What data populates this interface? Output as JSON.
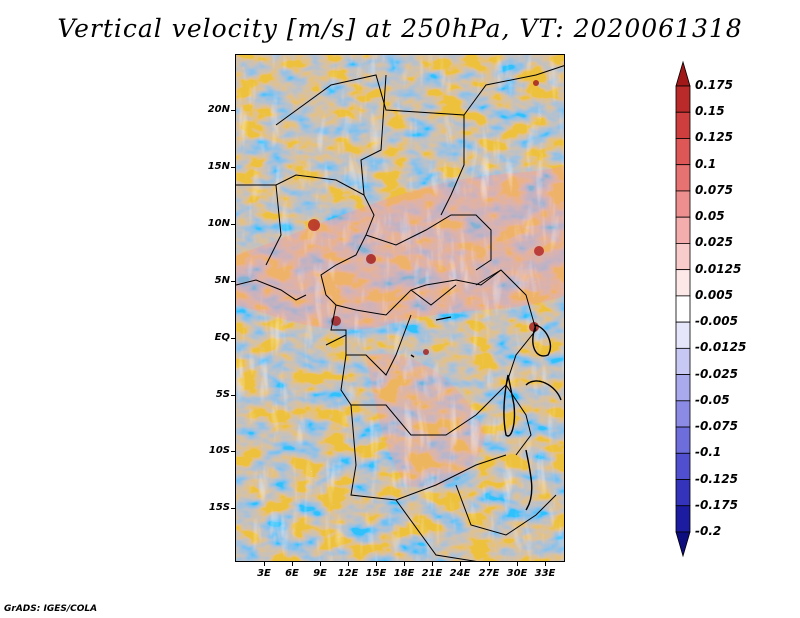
{
  "title": "Vertical velocity [m/s] at 250hPa, VT: 2020061318",
  "credit": "GrADS: IGES/COLA",
  "map": {
    "lat_labels": [
      "20N",
      "15N",
      "10N",
      "5N",
      "EQ",
      "5S",
      "10S",
      "15S"
    ],
    "lon_labels": [
      "3E",
      "6E",
      "9E",
      "12E",
      "15E",
      "18E",
      "21E",
      "24E",
      "27E",
      "30E",
      "33E"
    ]
  },
  "colorbar": {
    "labels": [
      "0.175",
      "0.15",
      "0.125",
      "0.1",
      "0.075",
      "0.05",
      "0.025",
      "0.0125",
      "0.005",
      "-0.005",
      "-0.0125",
      "-0.025",
      "-0.05",
      "-0.075",
      "-0.1",
      "-0.125",
      "-0.175",
      "-0.2"
    ],
    "colors": [
      "#a01818",
      "#bb2a2a",
      "#cf3e3e",
      "#dd5757",
      "#e67272",
      "#ee8f8f",
      "#f4adad",
      "#f9cccc",
      "#fde8e8",
      "#ffffff",
      "#e6e6fb",
      "#c8c8f5",
      "#a9a9ee",
      "#8b8be6",
      "#6d6ddc",
      "#4f4fcf",
      "#3333bb",
      "#1c1ca0",
      "#0d0d80"
    ]
  }
}
